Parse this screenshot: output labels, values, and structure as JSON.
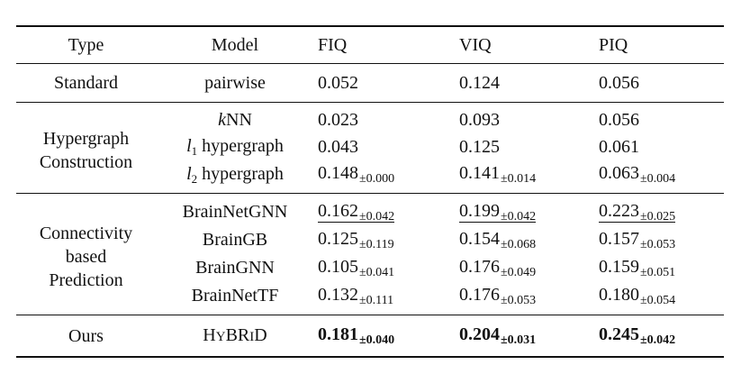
{
  "headers": [
    "Type",
    "Model",
    "FIQ",
    "VIQ",
    "PIQ"
  ],
  "groups": {
    "standard": {
      "type": "Standard",
      "rows": [
        {
          "model": "pairwise",
          "fiq": "0.052",
          "viq": "0.124",
          "piq": "0.056"
        }
      ]
    },
    "hypergraph": {
      "type_line1": "Hypergraph",
      "type_line2": "Construction",
      "rows": [
        {
          "model_var": "k",
          "model_rest": "NN",
          "fiq": "0.023",
          "viq": "0.093",
          "piq": "0.056"
        },
        {
          "model_var": "l",
          "model_sub": "1",
          "model_rest": " hypergraph",
          "fiq": "0.043",
          "viq": "0.125",
          "piq": "0.061"
        },
        {
          "model_var": "l",
          "model_sub": "2",
          "model_rest": " hypergraph",
          "fiq": "0.148",
          "fiq_pm": "±0.000",
          "viq": "0.141",
          "viq_pm": "±0.014",
          "piq": "0.063",
          "piq_pm": "±0.004"
        }
      ]
    },
    "connectivity": {
      "type_line1": "Connectivity",
      "type_line2": "based",
      "type_line3": "Prediction",
      "rows": [
        {
          "model": "BrainNetGNN",
          "fiq": "0.162",
          "fiq_pm": "±0.042",
          "viq": "0.199",
          "viq_pm": "±0.042",
          "piq": "0.223",
          "piq_pm": "±0.025"
        },
        {
          "model": "BrainGB",
          "fiq": "0.125",
          "fiq_pm": "±0.119",
          "viq": "0.154",
          "viq_pm": "±0.068",
          "piq": "0.157",
          "piq_pm": "±0.053"
        },
        {
          "model": "BrainGNN",
          "fiq": "0.105",
          "fiq_pm": "±0.041",
          "viq": "0.176",
          "viq_pm": "±0.049",
          "piq": "0.159",
          "piq_pm": "±0.051"
        },
        {
          "model": "BrainNetTF",
          "fiq": "0.132",
          "fiq_pm": "±0.111",
          "viq": "0.176",
          "viq_pm": "±0.053",
          "piq": "0.180",
          "piq_pm": "±0.054"
        }
      ]
    },
    "ours": {
      "type": "Ours",
      "model_parts": [
        "H",
        "Y",
        "B",
        "R",
        "I",
        "D"
      ],
      "fiq": "0.181",
      "fiq_pm": "±0.040",
      "viq": "0.204",
      "viq_pm": "±0.031",
      "piq": "0.245",
      "piq_pm": "±0.042"
    }
  }
}
